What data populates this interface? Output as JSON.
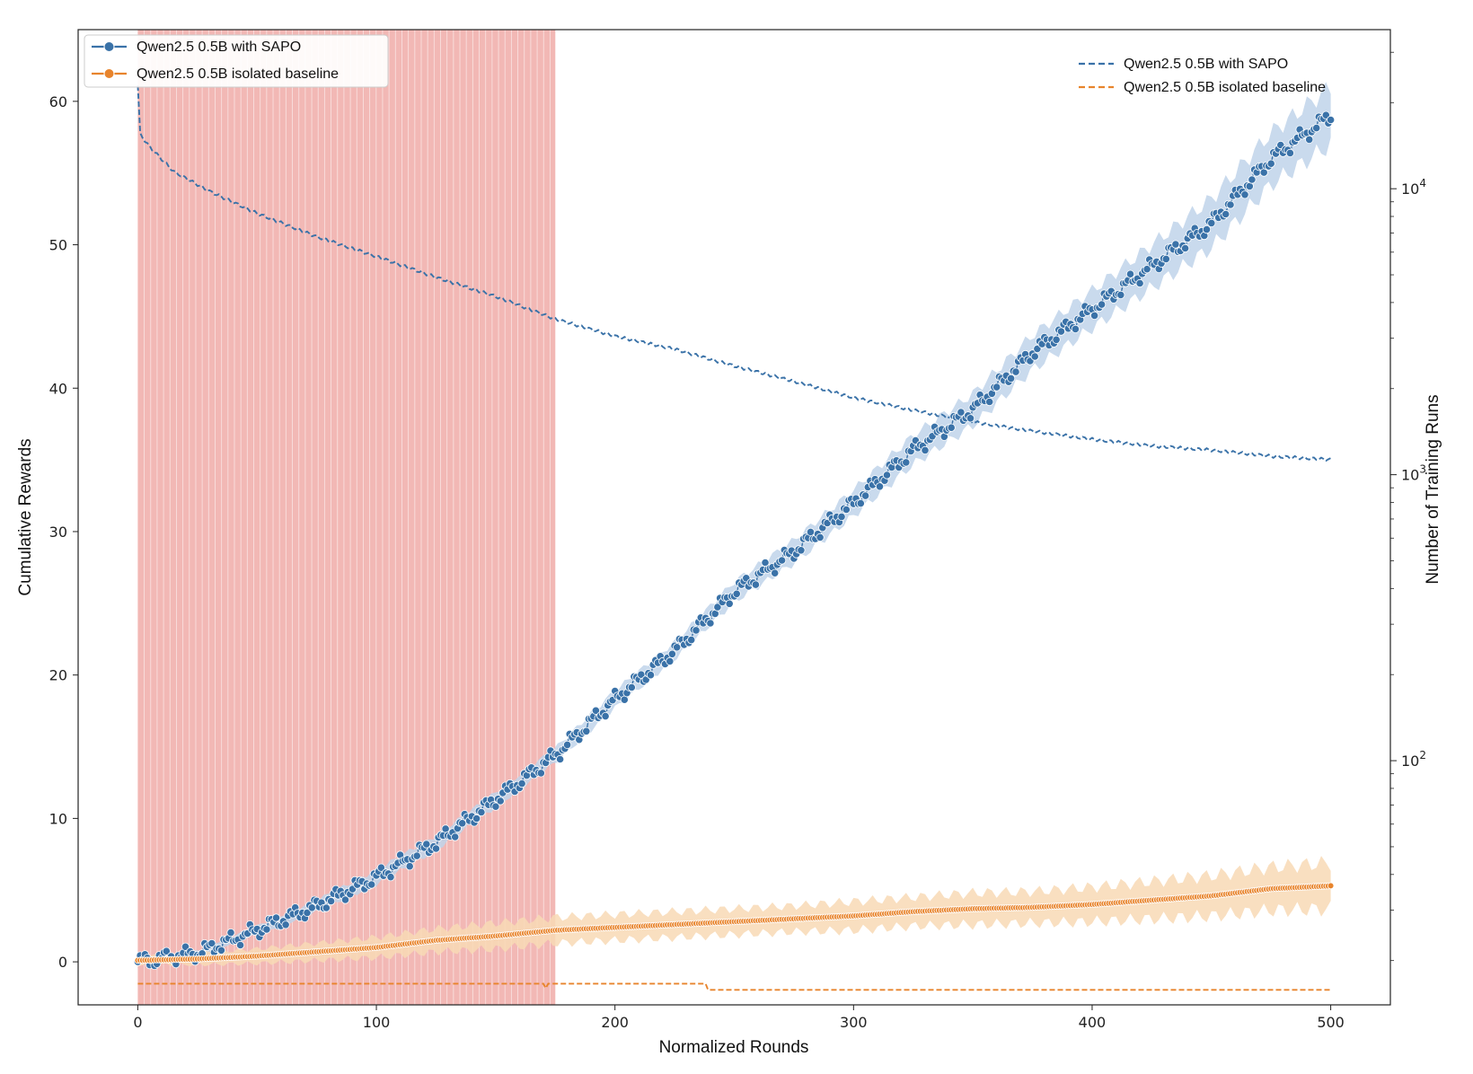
{
  "chart_data": {
    "type": "line",
    "xlabel": "Normalized Rounds",
    "ylabel": "Cumulative Rewards",
    "y2label": "Number of Training Runs",
    "xlim": [
      -25,
      525
    ],
    "ylim": [
      -3,
      65
    ],
    "y2lim": [
      14,
      36000
    ],
    "y2scale": "log",
    "x_ticks": [
      0,
      100,
      200,
      300,
      400,
      500
    ],
    "y_ticks": [
      0,
      10,
      20,
      30,
      40,
      50,
      60
    ],
    "y2_ticks": [
      {
        "value": 100,
        "base": "10",
        "exp": "2"
      },
      {
        "value": 1000,
        "base": "10",
        "exp": "3"
      },
      {
        "value": 10000,
        "base": "10",
        "exp": "4"
      }
    ],
    "shaded_region": {
      "x_start": 0,
      "x_end": 175,
      "color": "#f2b8b5"
    },
    "colors": {
      "sapo": "#3a72a8",
      "sapo_band": "#bfd4ea",
      "baseline": "#e8842c",
      "baseline_band": "#f8d9b5"
    },
    "legend_left": {
      "position": "upper-left",
      "entries": [
        "Qwen2.5 0.5B with SAPO",
        "Qwen2.5 0.5B isolated baseline"
      ]
    },
    "legend_right": {
      "position": "upper-right",
      "entries": [
        "Qwen2.5 0.5B with SAPO",
        "Qwen2.5 0.5B isolated baseline"
      ]
    },
    "series_rewards": [
      {
        "name": "Qwen2.5 0.5B with SAPO",
        "axis": "left",
        "x": [
          0,
          25,
          50,
          75,
          100,
          125,
          150,
          175,
          200,
          225,
          250,
          275,
          300,
          325,
          350,
          375,
          400,
          425,
          450,
          475,
          500
        ],
        "y": [
          0,
          0.6,
          2.2,
          3.9,
          5.9,
          8.3,
          11.3,
          14.4,
          18.3,
          21.7,
          25.8,
          28.6,
          32.0,
          35.7,
          38.5,
          42.5,
          45.5,
          48.5,
          51.5,
          56.0,
          59.0
        ],
        "band": [
          0.1,
          0.2,
          0.3,
          0.4,
          0.5,
          0.5,
          0.5,
          0.5,
          0.6,
          0.6,
          0.7,
          0.8,
          0.9,
          1.0,
          1.1,
          1.2,
          1.3,
          1.5,
          1.7,
          1.8,
          2.0
        ]
      },
      {
        "name": "Qwen2.5 0.5B isolated baseline",
        "axis": "left",
        "x": [
          0,
          25,
          50,
          75,
          100,
          125,
          150,
          175,
          200,
          225,
          250,
          275,
          300,
          325,
          350,
          375,
          400,
          425,
          450,
          475,
          500
        ],
        "y": [
          0.1,
          0.2,
          0.4,
          0.7,
          1.0,
          1.5,
          1.8,
          2.2,
          2.4,
          2.6,
          2.8,
          3.0,
          3.2,
          3.5,
          3.7,
          3.8,
          4.0,
          4.3,
          4.6,
          5.1,
          5.3
        ],
        "band": [
          0.3,
          0.4,
          0.5,
          0.6,
          0.7,
          0.8,
          0.9,
          0.9,
          0.9,
          0.9,
          0.9,
          0.9,
          1.0,
          1.0,
          1.1,
          1.1,
          1.2,
          1.3,
          1.4,
          1.5,
          1.6
        ]
      }
    ],
    "series_runs": [
      {
        "name": "Qwen2.5 0.5B with SAPO",
        "axis": "right",
        "style": "dashed",
        "x": [
          0,
          1,
          5,
          15,
          30,
          50,
          75,
          100,
          125,
          150,
          175,
          200,
          225,
          250,
          275,
          300,
          325,
          350,
          375,
          400,
          425,
          450,
          475,
          500
        ],
        "y": [
          23000,
          15500,
          14000,
          11500,
          9800,
          8200,
          6800,
          5800,
          4900,
          4200,
          3500,
          3050,
          2750,
          2400,
          2120,
          1860,
          1680,
          1530,
          1420,
          1330,
          1260,
          1220,
          1160,
          1130
        ]
      },
      {
        "name": "Qwen2.5 0.5B isolated baseline",
        "axis": "right",
        "style": "dashed",
        "x": [
          0,
          100,
          170,
          171,
          172,
          238,
          239,
          500
        ],
        "y": [
          16.6,
          16.6,
          16.6,
          16.0,
          16.6,
          16.6,
          15.8,
          15.8
        ]
      }
    ]
  }
}
